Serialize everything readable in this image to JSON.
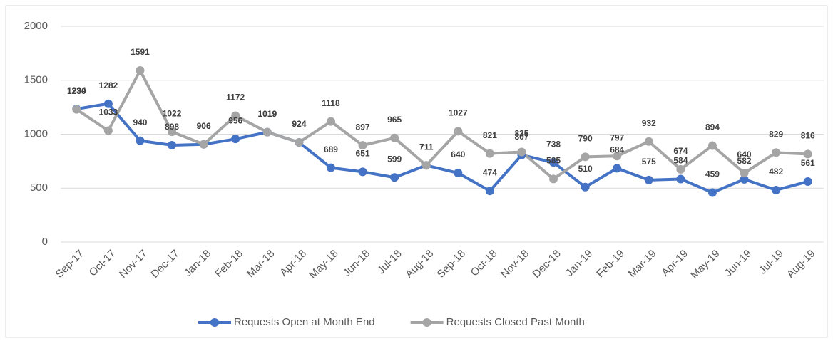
{
  "chart_data": {
    "type": "line",
    "categories": [
      "Sep-17",
      "Oct-17",
      "Nov-17",
      "Dec-17",
      "Jan-18",
      "Feb-18",
      "Mar-18",
      "Apr-18",
      "May-18",
      "Jun-18",
      "Jul-18",
      "Aug-18",
      "Sep-18",
      "Oct-18",
      "Nov-18",
      "Dec-18",
      "Jan-19",
      "Feb-19",
      "Mar-19",
      "Apr-19",
      "May-19",
      "Jun-19",
      "Jul-19",
      "Aug-19"
    ],
    "series": [
      {
        "name": "Requests Open at Month End",
        "color": "#4472c4",
        "values": [
          1234,
          1282,
          940,
          898,
          906,
          956,
          1019,
          924,
          689,
          651,
          599,
          711,
          640,
          474,
          807,
          738,
          510,
          684,
          575,
          584,
          459,
          582,
          482,
          561
        ]
      },
      {
        "name": "Requests Closed Past Month",
        "color": "#a5a5a5",
        "values": [
          1230,
          1033,
          1591,
          1022,
          906,
          1172,
          1019,
          924,
          1118,
          897,
          965,
          711,
          1027,
          821,
          835,
          585,
          790,
          797,
          932,
          674,
          894,
          640,
          829,
          816
        ]
      }
    ],
    "ylim": [
      0,
      2000
    ],
    "yticks": [
      0,
      500,
      1000,
      1500,
      2000
    ],
    "grid": true,
    "legend": "bottom"
  }
}
